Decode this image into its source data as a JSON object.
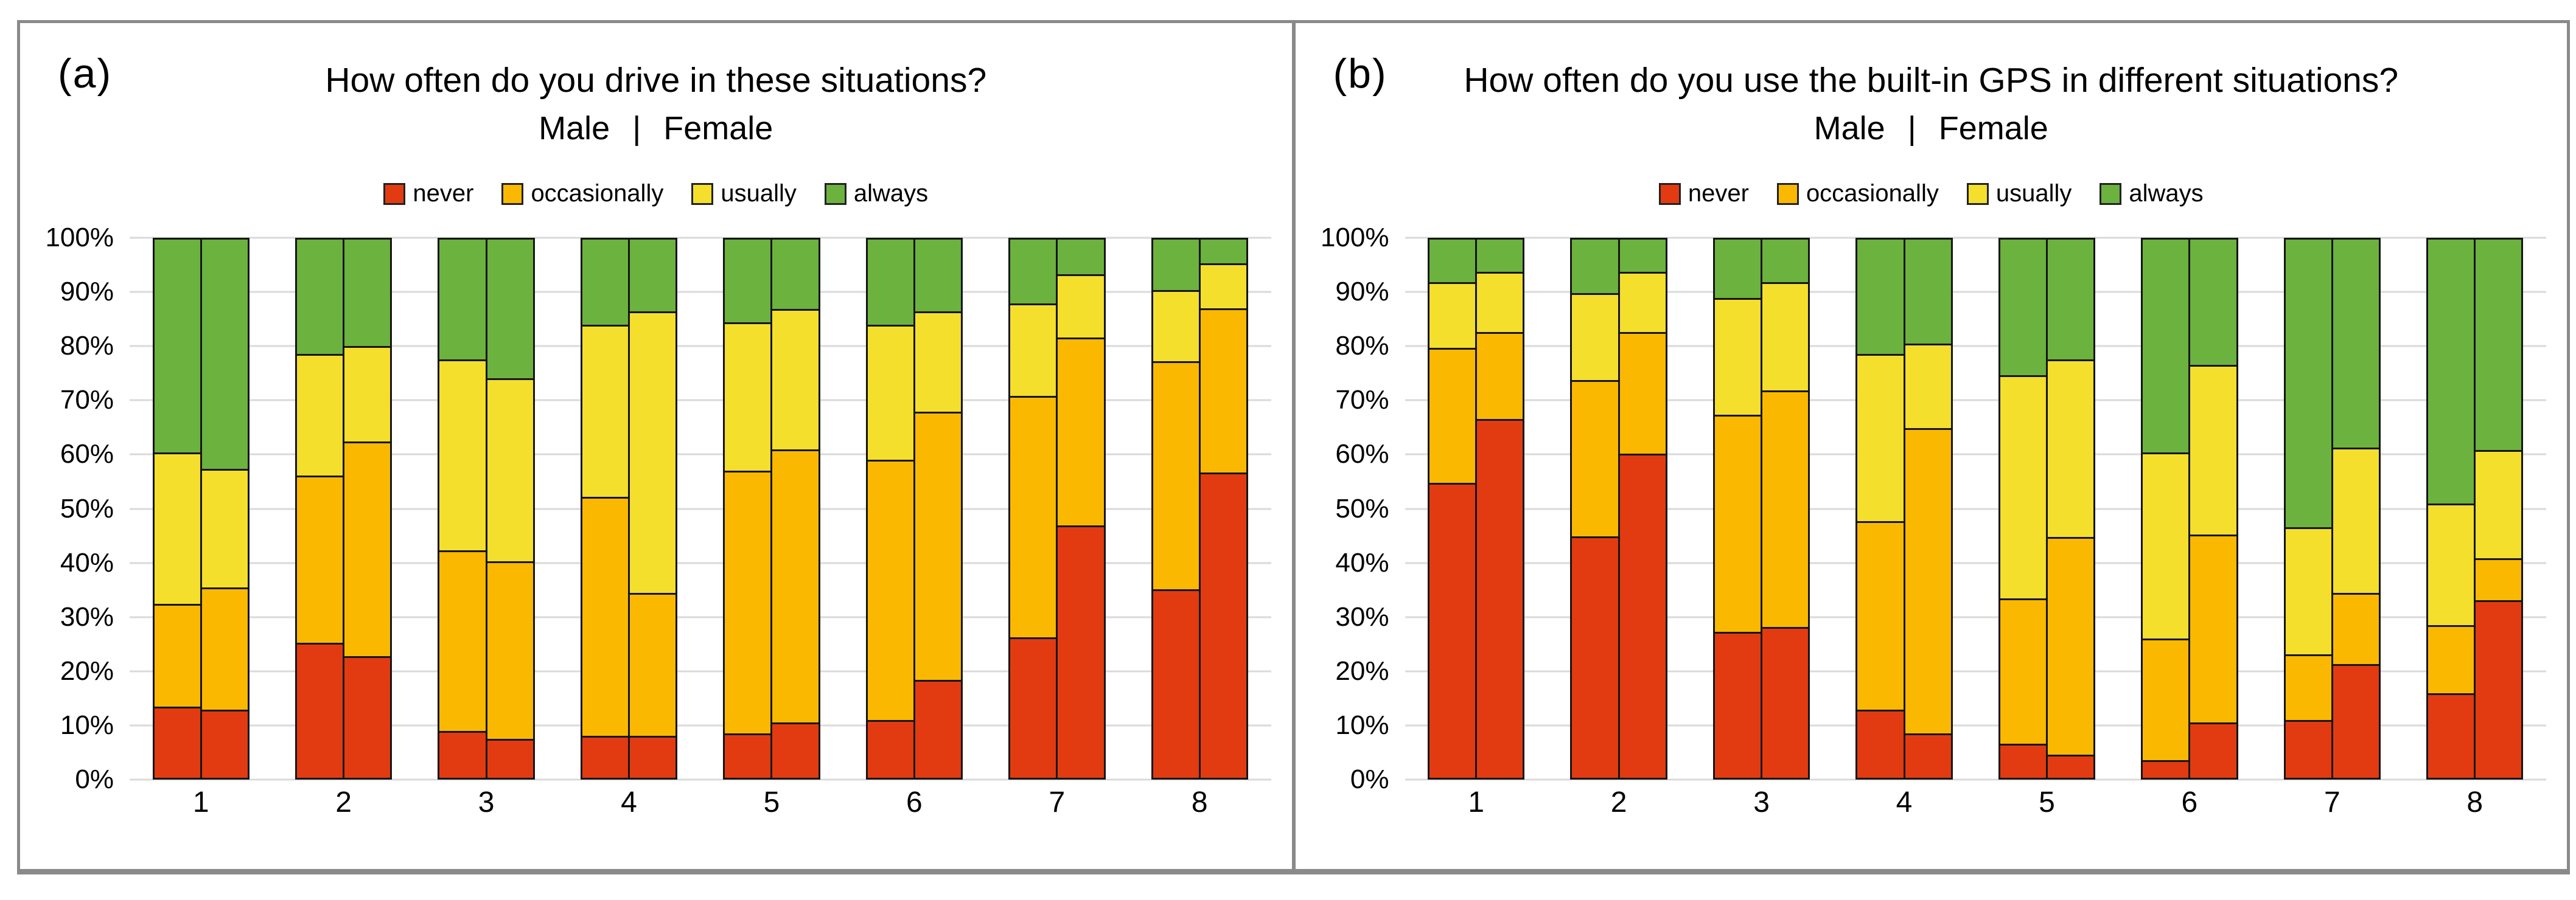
{
  "chart_data": [
    {
      "type": "bar",
      "stacked": true,
      "percent": true,
      "panel_id": "a",
      "panel_label": "(a)",
      "title": "How often do you drive in these situations?",
      "subtitle": "Male | Female",
      "legend": [
        "never",
        "occasionally",
        "usually",
        "always"
      ],
      "colors": [
        "#E23B11",
        "#FAB900",
        "#F4DF2D",
        "#6CB23E"
      ],
      "categories": [
        "1",
        "2",
        "3",
        "4",
        "5",
        "6",
        "7",
        "8"
      ],
      "ylabel": "",
      "ylim": [
        0,
        100
      ],
      "grid": true,
      "legend_position": "top",
      "ytick_labels": [
        "100%",
        "90%",
        "80%",
        "70%",
        "60%",
        "50%",
        "40%",
        "30%",
        "20%",
        "10%",
        "0%"
      ],
      "series": [
        {
          "name": "Male",
          "stacks": [
            [
              13,
              19,
              28,
              40
            ],
            [
              25,
              31,
              22.5,
              21.5
            ],
            [
              8.5,
              33.5,
              35.5,
              22.5
            ],
            [
              7.5,
              44.5,
              32,
              16
            ],
            [
              8,
              49,
              27.5,
              15.5
            ],
            [
              10.5,
              48.5,
              25,
              16
            ],
            [
              26,
              45,
              17,
              12
            ],
            [
              35,
              42.5,
              13,
              9.5
            ]
          ]
        },
        {
          "name": "Female",
          "stacks": [
            [
              12.5,
              22.5,
              22,
              43
            ],
            [
              22.5,
              40,
              17.5,
              20
            ],
            [
              7,
              33,
              34,
              26
            ],
            [
              7.5,
              26.5,
              52.5,
              13.5
            ],
            [
              10,
              51,
              26,
              13
            ],
            [
              18,
              50,
              18.5,
              13.5
            ],
            [
              47,
              35,
              11.5,
              6.5
            ],
            [
              57,
              30.5,
              8,
              4.5
            ]
          ]
        }
      ]
    },
    {
      "type": "bar",
      "stacked": true,
      "percent": true,
      "panel_id": "b",
      "panel_label": "(b)",
      "title": "How often do you use the built-in GPS in different situations?",
      "subtitle": "Male | Female",
      "legend": [
        "never",
        "occasionally",
        "usually",
        "always"
      ],
      "colors": [
        "#E23B11",
        "#FAB900",
        "#F4DF2D",
        "#6CB23E"
      ],
      "categories": [
        "1",
        "2",
        "3",
        "4",
        "5",
        "6",
        "7",
        "8"
      ],
      "ylabel": "",
      "ylim": [
        0,
        100
      ],
      "grid": true,
      "legend_position": "top",
      "ytick_labels": [
        "100%",
        "90%",
        "80%",
        "70%",
        "60%",
        "50%",
        "40%",
        "30%",
        "20%",
        "10%",
        "0%"
      ],
      "series": [
        {
          "name": "Male",
          "stacks": [
            [
              55,
              25,
              12,
              8
            ],
            [
              45,
              29,
              16,
              10
            ],
            [
              27,
              40.5,
              21.5,
              11
            ],
            [
              12.5,
              35,
              31,
              21.5
            ],
            [
              6,
              27,
              41.5,
              25.5
            ],
            [
              3,
              22.5,
              34.5,
              40
            ],
            [
              10.5,
              12,
              23.5,
              54
            ],
            [
              15.5,
              12.5,
              22.5,
              49.5
            ]
          ]
        },
        {
          "name": "Female",
          "stacks": [
            [
              67,
              16,
              11,
              6
            ],
            [
              60.5,
              22.5,
              11,
              6
            ],
            [
              28,
              44,
              20,
              8
            ],
            [
              8,
              57,
              15.5,
              19.5
            ],
            [
              4,
              40.5,
              33,
              22.5
            ],
            [
              10,
              35,
              31.5,
              23.5
            ],
            [
              21,
              13,
              27,
              39
            ],
            [
              33,
              7.5,
              20,
              39.5
            ]
          ]
        }
      ]
    }
  ]
}
